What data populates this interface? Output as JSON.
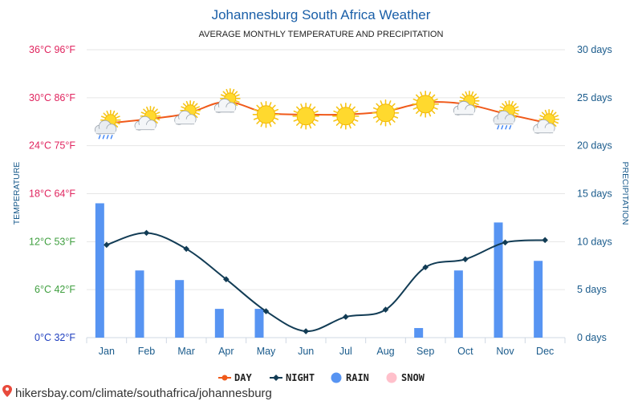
{
  "source": {
    "url_text": "hikersbay.com/climate/southafrica/johannesburg",
    "icon": "map-pin-icon",
    "icon_color": "#e84a3c"
  },
  "chart_data": {
    "type": "line",
    "title": "Johannesburg South Africa Weather",
    "subtitle": "AVERAGE MONTHLY TEMPERATURE AND PRECIPITATION",
    "ylabel": "TEMPERATURE",
    "ylabel_right": "PRECIPITATION",
    "categories": [
      "Jan",
      "Feb",
      "Mar",
      "Apr",
      "May",
      "Jun",
      "Jul",
      "Aug",
      "Sep",
      "Oct",
      "Nov",
      "Dec"
    ],
    "ylim": [
      0,
      36
    ],
    "y2lim": [
      0,
      30
    ],
    "left_ticks": [
      {
        "value": 0,
        "label": "0°C 32°F",
        "color": "#1f3fbf"
      },
      {
        "value": 6,
        "label": "6°C 42°F",
        "color": "#3f9f3f"
      },
      {
        "value": 12,
        "label": "12°C 53°F",
        "color": "#3f9f3f"
      },
      {
        "value": 18,
        "label": "18°C 64°F",
        "color": "#e0245e"
      },
      {
        "value": 24,
        "label": "24°C 75°F",
        "color": "#e0245e"
      },
      {
        "value": 30,
        "label": "30°C 86°F",
        "color": "#e0245e"
      },
      {
        "value": 36,
        "label": "36°C 96°F",
        "color": "#e0245e"
      }
    ],
    "right_ticks": [
      {
        "value": 0,
        "label": "0 days"
      },
      {
        "value": 5,
        "label": "5 days"
      },
      {
        "value": 10,
        "label": "10 days"
      },
      {
        "value": 15,
        "label": "15 days"
      },
      {
        "value": 20,
        "label": "20 days"
      },
      {
        "value": 25,
        "label": "25 days"
      },
      {
        "value": 30,
        "label": "30 days"
      }
    ],
    "series": [
      {
        "name": "DAY",
        "type": "line",
        "axis": "left",
        "color": "#f05a1a",
        "values": [
          26.8,
          27.3,
          28.0,
          29.5,
          28.1,
          27.9,
          27.9,
          28.3,
          29.4,
          29.2,
          28.0,
          26.9
        ]
      },
      {
        "name": "NIGHT",
        "type": "line",
        "axis": "left",
        "color": "#123c55",
        "values": [
          11.6,
          13.1,
          11.1,
          7.3,
          3.3,
          0.8,
          2.6,
          3.5,
          8.8,
          9.8,
          11.9,
          12.2
        ]
      },
      {
        "name": "RAIN",
        "type": "bar",
        "axis": "right",
        "color": "#5794f2",
        "values": [
          14,
          7,
          6,
          3,
          3,
          0,
          0,
          0,
          1,
          7,
          12,
          8
        ]
      },
      {
        "name": "SNOW",
        "type": "bar",
        "axis": "right",
        "color": "#ffc0cb",
        "values": [
          0,
          0,
          0,
          0,
          0,
          0,
          0,
          0,
          0,
          0,
          0,
          0
        ]
      }
    ],
    "weather_icons": [
      "sun-cloud-rain-icon",
      "sun-cloud-icon",
      "sun-cloud-icon",
      "sun-cloud-icon",
      "sun-icon",
      "sun-icon",
      "sun-icon",
      "sun-icon",
      "sun-icon",
      "sun-cloud-icon",
      "sun-cloud-rain-icon",
      "sun-cloud-icon"
    ],
    "legend": [
      {
        "label": "DAY",
        "marker": "line-dot",
        "color": "#f05a1a"
      },
      {
        "label": "NIGHT",
        "marker": "line-diamond",
        "color": "#123c55"
      },
      {
        "label": "RAIN",
        "marker": "circle",
        "color": "#5794f2"
      },
      {
        "label": "SNOW",
        "marker": "circle",
        "color": "#ffc0cb"
      }
    ]
  }
}
